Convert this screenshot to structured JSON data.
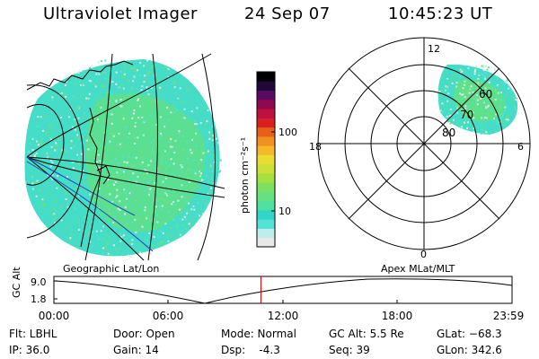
{
  "header": {
    "instrument": "Ultraviolet Imager",
    "date": "24 Sep 07",
    "time": "10:45:23 UT"
  },
  "left_panel": {
    "label": "Geographic Lat/Lon"
  },
  "right_panel": {
    "label": "Apex MLat/MLT",
    "mlt_labels": [
      "12",
      "18",
      "6",
      "0"
    ],
    "mlat_labels": [
      "60",
      "70",
      "80"
    ]
  },
  "colorbar": {
    "unit_label": "photon cm⁻²s⁻¹",
    "ticks": [
      "100",
      "10"
    ],
    "colors": [
      "#e8e8e8",
      "#bfeeea",
      "#55e2d8",
      "#32d6c8",
      "#4ee0a0",
      "#66e080",
      "#7de060",
      "#a6e040",
      "#cce038",
      "#eadc30",
      "#f4b828",
      "#f09020",
      "#e86018",
      "#d82020",
      "#c01040",
      "#900850",
      "#5a0a60",
      "#200838",
      "#000000"
    ]
  },
  "timeline": {
    "axis_label": "GC Alt",
    "y_ticks": [
      "9.0",
      "1.8"
    ],
    "x_ticks": [
      "00:00",
      "06:00",
      "12:00",
      "18:00",
      "23:59"
    ],
    "current_time_fraction": 0.452,
    "marker_color": "#e00000"
  },
  "info": {
    "flt": "Flt: LBHL",
    "ip": "IP: 36.0",
    "door": "Door: Open",
    "gain": "Gain: 14",
    "mode": "Mode: Normal",
    "dsp": "Dsp:    -4.3",
    "gcalt": "GC Alt: 5.5 Re",
    "seq": "Seq: 39",
    "glat": "GLat: −68.3",
    "glon": "GLon: 342.6"
  }
}
